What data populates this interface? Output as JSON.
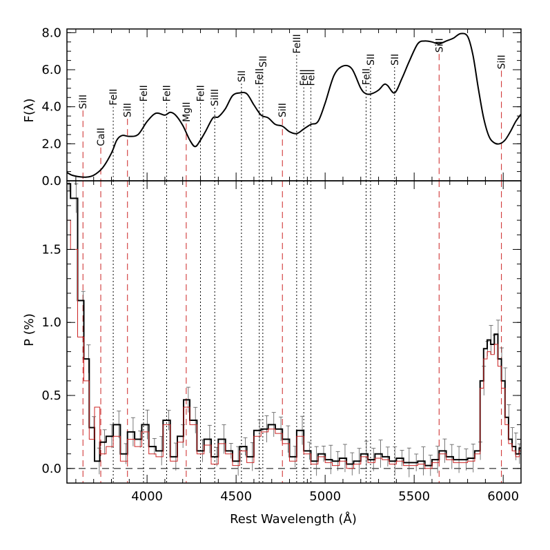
{
  "chart_data": {
    "type": "line",
    "x_label": "Rest Wavelength (Å)",
    "xlim": [
      3550,
      6100
    ],
    "x_ticks": [
      4000,
      4500,
      5000,
      5500,
      6000
    ],
    "x_tick_labels": [
      "4000",
      "4500",
      "5000",
      "5500",
      "6000"
    ],
    "panels": [
      {
        "name": "flux",
        "y_label": "F(λ)",
        "ylim": [
          0,
          8.2
        ],
        "y_ticks": [
          0,
          2,
          4,
          6,
          8
        ],
        "y_tick_labels": [
          "0.0",
          "2.0",
          "4.0",
          "6.0",
          "8.0"
        ],
        "series": [
          {
            "color": "#000000",
            "x": [
              3550,
              3580,
              3620,
              3660,
              3700,
              3750,
              3800,
              3830,
              3860,
              3900,
              3950,
              4000,
              4050,
              4100,
              4130,
              4160,
              4200,
              4240,
              4270,
              4300,
              4330,
              4370,
              4400,
              4440,
              4480,
              4520,
              4560,
              4600,
              4640,
              4680,
              4720,
              4760,
              4800,
              4840,
              4880,
              4920,
              4960,
              5000,
              5050,
              5100,
              5150,
              5200,
              5230,
              5260,
              5300,
              5330,
              5350,
              5390,
              5430,
              5470,
              5520,
              5560,
              5600,
              5640,
              5680,
              5720,
              5760,
              5800,
              5830,
              5860,
              5890,
              5920,
              5950,
              5980,
              6010,
              6040,
              6070,
              6100
            ],
            "y": [
              0.45,
              0.3,
              0.22,
              0.2,
              0.3,
              0.7,
              1.5,
              2.2,
              2.45,
              2.4,
              2.5,
              3.2,
              3.65,
              3.55,
              3.7,
              3.55,
              3.0,
              2.2,
              1.85,
              2.2,
              2.7,
              3.4,
              3.45,
              3.9,
              4.6,
              4.75,
              4.7,
              4.1,
              3.55,
              3.4,
              3.05,
              2.95,
              2.65,
              2.55,
              2.8,
              3.05,
              3.2,
              4.2,
              5.7,
              6.2,
              6.05,
              5.0,
              4.7,
              4.7,
              4.9,
              5.2,
              5.15,
              4.75,
              5.5,
              6.4,
              7.4,
              7.55,
              7.5,
              7.4,
              7.55,
              7.7,
              7.95,
              7.8,
              6.8,
              5.0,
              3.4,
              2.4,
              2.05,
              2.0,
              2.2,
              2.65,
              3.2,
              3.6
            ]
          }
        ],
        "lines": [
          {
            "x": 3640,
            "label": "SiII",
            "style": "red-dashed",
            "y_bottom": 3.65
          },
          {
            "x": 3740,
            "label": "CaII",
            "style": "red-dashed",
            "y_bottom": 1.65
          },
          {
            "x": 3810,
            "label": "FeII",
            "style": "black-dotted",
            "y_bottom": 3.85
          },
          {
            "x": 3890,
            "label": "SiII",
            "style": "red-dashed",
            "y_bottom": 3.2
          },
          {
            "x": 3980,
            "label": "FeII",
            "style": "black-dotted",
            "y_bottom": 4.05
          },
          {
            "x": 4110,
            "label": "FeII",
            "style": "black-dotted",
            "y_bottom": 4.05
          },
          {
            "x": 4220,
            "label": "MgII",
            "style": "red-dashed",
            "y_bottom": 2.95
          },
          {
            "x": 4300,
            "label": "FeII",
            "style": "black-dotted",
            "y_bottom": 4.05
          },
          {
            "x": 4380,
            "label": "SiIII",
            "style": "black-dotted",
            "y_bottom": 3.8
          },
          {
            "x": 4530,
            "label": "SII",
            "style": "black-dotted",
            "y_bottom": 5.1
          },
          {
            "x": 4650,
            "label": "SII",
            "style": "black-dotted",
            "y_bottom": 5.9
          },
          {
            "x": 4630,
            "label": "FeII",
            "style": "black-dotted",
            "y_bottom": 4.95
          },
          {
            "x": 4760,
            "label": "SiII",
            "style": "red-dashed",
            "y_bottom": 3.2
          },
          {
            "x": 4840,
            "label": "FeIII",
            "style": "black-dotted",
            "y_bottom": 6.65
          },
          {
            "x": 4880,
            "label": "FeII",
            "style": "black-dotted",
            "y_bottom": 4.9
          },
          {
            "x": 4920,
            "label": "FeII",
            "style": "black-dotted",
            "y_bottom": 4.9
          },
          {
            "x": 5230,
            "label": "FeII",
            "style": "black-dotted",
            "y_bottom": 4.95
          },
          {
            "x": 5255,
            "label": "SII",
            "style": "black-dotted",
            "y_bottom": 6.0
          },
          {
            "x": 5390,
            "label": "SII",
            "style": "black-dotted",
            "y_bottom": 6.0
          },
          {
            "x": 5640,
            "label": "SiII",
            "style": "red-dashed",
            "y_bottom": 6.7
          },
          {
            "x": 5990,
            "label": "SiII",
            "style": "red-dashed",
            "y_bottom": 5.8
          }
        ]
      },
      {
        "name": "polarization",
        "y_label": "P (%)",
        "ylim": [
          -0.1,
          1.97
        ],
        "y_ticks": [
          0,
          0.5,
          1.0,
          1.5
        ],
        "y_tick_labels": [
          "0.0",
          "0.5",
          "1.0",
          "1.5"
        ],
        "series": [
          {
            "color": "#000000",
            "x": [
              3550,
              3590,
              3630,
              3660,
              3690,
              3720,
              3750,
              3790,
              3830,
              3870,
              3910,
              3950,
              3990,
              4030,
              4070,
              4110,
              4150,
              4190,
              4220,
              4260,
              4300,
              4340,
              4380,
              4420,
              4460,
              4500,
              4540,
              4580,
              4620,
              4660,
              4700,
              4740,
              4780,
              4820,
              4860,
              4900,
              4940,
              4980,
              5020,
              5060,
              5100,
              5140,
              5180,
              5220,
              5260,
              5300,
              5340,
              5380,
              5420,
              5460,
              5500,
              5540,
              5580,
              5620,
              5660,
              5700,
              5740,
              5780,
              5820,
              5860,
              5880,
              5900,
              5920,
              5940,
              5960,
              5980,
              6000,
              6020,
              6040,
              6060,
              6080,
              6100
            ],
            "y": [
              1.95,
              1.85,
              1.15,
              0.75,
              0.28,
              0.05,
              0.18,
              0.22,
              0.3,
              0.1,
              0.25,
              0.2,
              0.3,
              0.15,
              0.12,
              0.33,
              0.08,
              0.22,
              0.47,
              0.33,
              0.12,
              0.2,
              0.08,
              0.2,
              0.12,
              0.05,
              0.15,
              0.08,
              0.26,
              0.27,
              0.3,
              0.27,
              0.2,
              0.08,
              0.26,
              0.12,
              0.05,
              0.1,
              0.06,
              0.05,
              0.07,
              0.03,
              0.05,
              0.1,
              0.06,
              0.1,
              0.08,
              0.05,
              0.07,
              0.04,
              0.04,
              0.05,
              0.02,
              0.06,
              0.12,
              0.08,
              0.06,
              0.06,
              0.07,
              0.12,
              0.6,
              0.82,
              0.88,
              0.85,
              0.92,
              0.75,
              0.6,
              0.35,
              0.2,
              0.15,
              0.1,
              0.14
            ]
          },
          {
            "color": "#cc2222",
            "x": [
              3550,
              3590,
              3630,
              3660,
              3690,
              3720,
              3750,
              3790,
              3830,
              3870,
              3910,
              3950,
              3990,
              4030,
              4070,
              4110,
              4150,
              4190,
              4220,
              4260,
              4300,
              4340,
              4380,
              4420,
              4460,
              4500,
              4540,
              4580,
              4620,
              4660,
              4700,
              4740,
              4780,
              4820,
              4860,
              4900,
              4940,
              4980,
              5020,
              5060,
              5100,
              5140,
              5180,
              5220,
              5260,
              5300,
              5340,
              5380,
              5420,
              5460,
              5500,
              5540,
              5580,
              5620,
              5660,
              5700,
              5740,
              5780,
              5820,
              5860,
              5880,
              5900,
              5920,
              5940,
              5960,
              5980,
              6000,
              6020,
              6040,
              6060,
              6080,
              6100
            ],
            "y": [
              1.7,
              1.5,
              0.9,
              0.6,
              0.2,
              0.42,
              0.1,
              0.15,
              0.22,
              0.05,
              0.2,
              0.15,
              0.25,
              0.1,
              0.08,
              0.3,
              0.05,
              0.18,
              0.42,
              0.3,
              0.1,
              0.16,
              0.03,
              0.17,
              0.1,
              0.02,
              0.12,
              0.04,
              0.22,
              0.25,
              0.27,
              0.24,
              0.17,
              0.05,
              0.22,
              0.1,
              0.03,
              0.08,
              0.04,
              0.02,
              0.05,
              0.0,
              0.03,
              0.08,
              0.04,
              0.07,
              0.06,
              0.03,
              0.05,
              0.02,
              0.02,
              0.03,
              0.0,
              0.04,
              0.1,
              0.06,
              0.04,
              0.04,
              0.05,
              0.1,
              0.55,
              0.75,
              0.8,
              0.78,
              0.85,
              0.7,
              0.55,
              0.3,
              0.17,
              0.12,
              0.08,
              0.12
            ]
          }
        ],
        "zero_line": "dashed"
      }
    ]
  }
}
